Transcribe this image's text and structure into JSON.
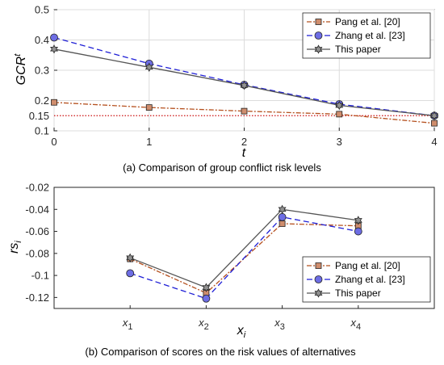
{
  "chart_data": [
    {
      "type": "line",
      "caption": "(a) Comparison of group conflict risk levels",
      "ylabel": {
        "main": "GCR",
        "sup": "t"
      },
      "xlabel": "t",
      "x": [
        0,
        1,
        2,
        3,
        4
      ],
      "xticks": [
        "0",
        "1",
        "2",
        "3",
        "4"
      ],
      "xlim": [
        0,
        4
      ],
      "ylim": [
        0.1,
        0.5
      ],
      "yticks": [
        "0.1",
        "0.2",
        "0.3",
        "0.4",
        "0.5"
      ],
      "grid": true,
      "legend_position": "top-right",
      "threshold": {
        "value": 0.15,
        "label": "0.15",
        "color": "#cc1111"
      },
      "series": [
        {
          "name": "Pang et al. [20]",
          "values": [
            0.194,
            0.177,
            0.165,
            0.155,
            0.125
          ],
          "color": "#b5501e",
          "dash": "6,2,2,2",
          "marker": "square"
        },
        {
          "name": "Zhang et al. [23]",
          "values": [
            0.408,
            0.322,
            0.252,
            0.188,
            0.15
          ],
          "color": "#1f1fd6",
          "dash": "7,4",
          "marker": "circle"
        },
        {
          "name": "This paper",
          "values": [
            0.37,
            0.31,
            0.25,
            0.184,
            0.15
          ],
          "color": "#555555",
          "dash": "",
          "marker": "hexagram"
        }
      ]
    },
    {
      "type": "line",
      "caption": "(b) Comparison of scores on the risk values of alternatives",
      "ylabel": {
        "main": "rs",
        "sub": "i"
      },
      "xlabel": {
        "main": "x",
        "sub": "i"
      },
      "categories": [
        {
          "main": "x",
          "sub": "1"
        },
        {
          "main": "x",
          "sub": "2"
        },
        {
          "main": "x",
          "sub": "3"
        },
        {
          "main": "x",
          "sub": "4"
        }
      ],
      "xlim": [
        0,
        5
      ],
      "x": [
        1,
        2,
        3,
        4
      ],
      "ylim": [
        -0.13,
        -0.02
      ],
      "yticks": [
        "-0.12",
        "-0.1",
        "-0.08",
        "-0.06",
        "-0.04",
        "-0.02"
      ],
      "grid": false,
      "legend_position": "bottom-right",
      "series": [
        {
          "name": "Pang et al. [20]",
          "values": [
            -0.085,
            -0.116,
            -0.053,
            -0.055
          ],
          "color": "#b5501e",
          "dash": "6,2,2,2",
          "marker": "square"
        },
        {
          "name": "Zhang et al. [23]",
          "values": [
            -0.098,
            -0.121,
            -0.047,
            -0.06
          ],
          "color": "#1f1fd6",
          "dash": "7,4",
          "marker": "circle"
        },
        {
          "name": "This paper",
          "values": [
            -0.084,
            -0.111,
            -0.04,
            -0.05
          ],
          "color": "#555555",
          "dash": "",
          "marker": "hexagram"
        }
      ]
    }
  ]
}
